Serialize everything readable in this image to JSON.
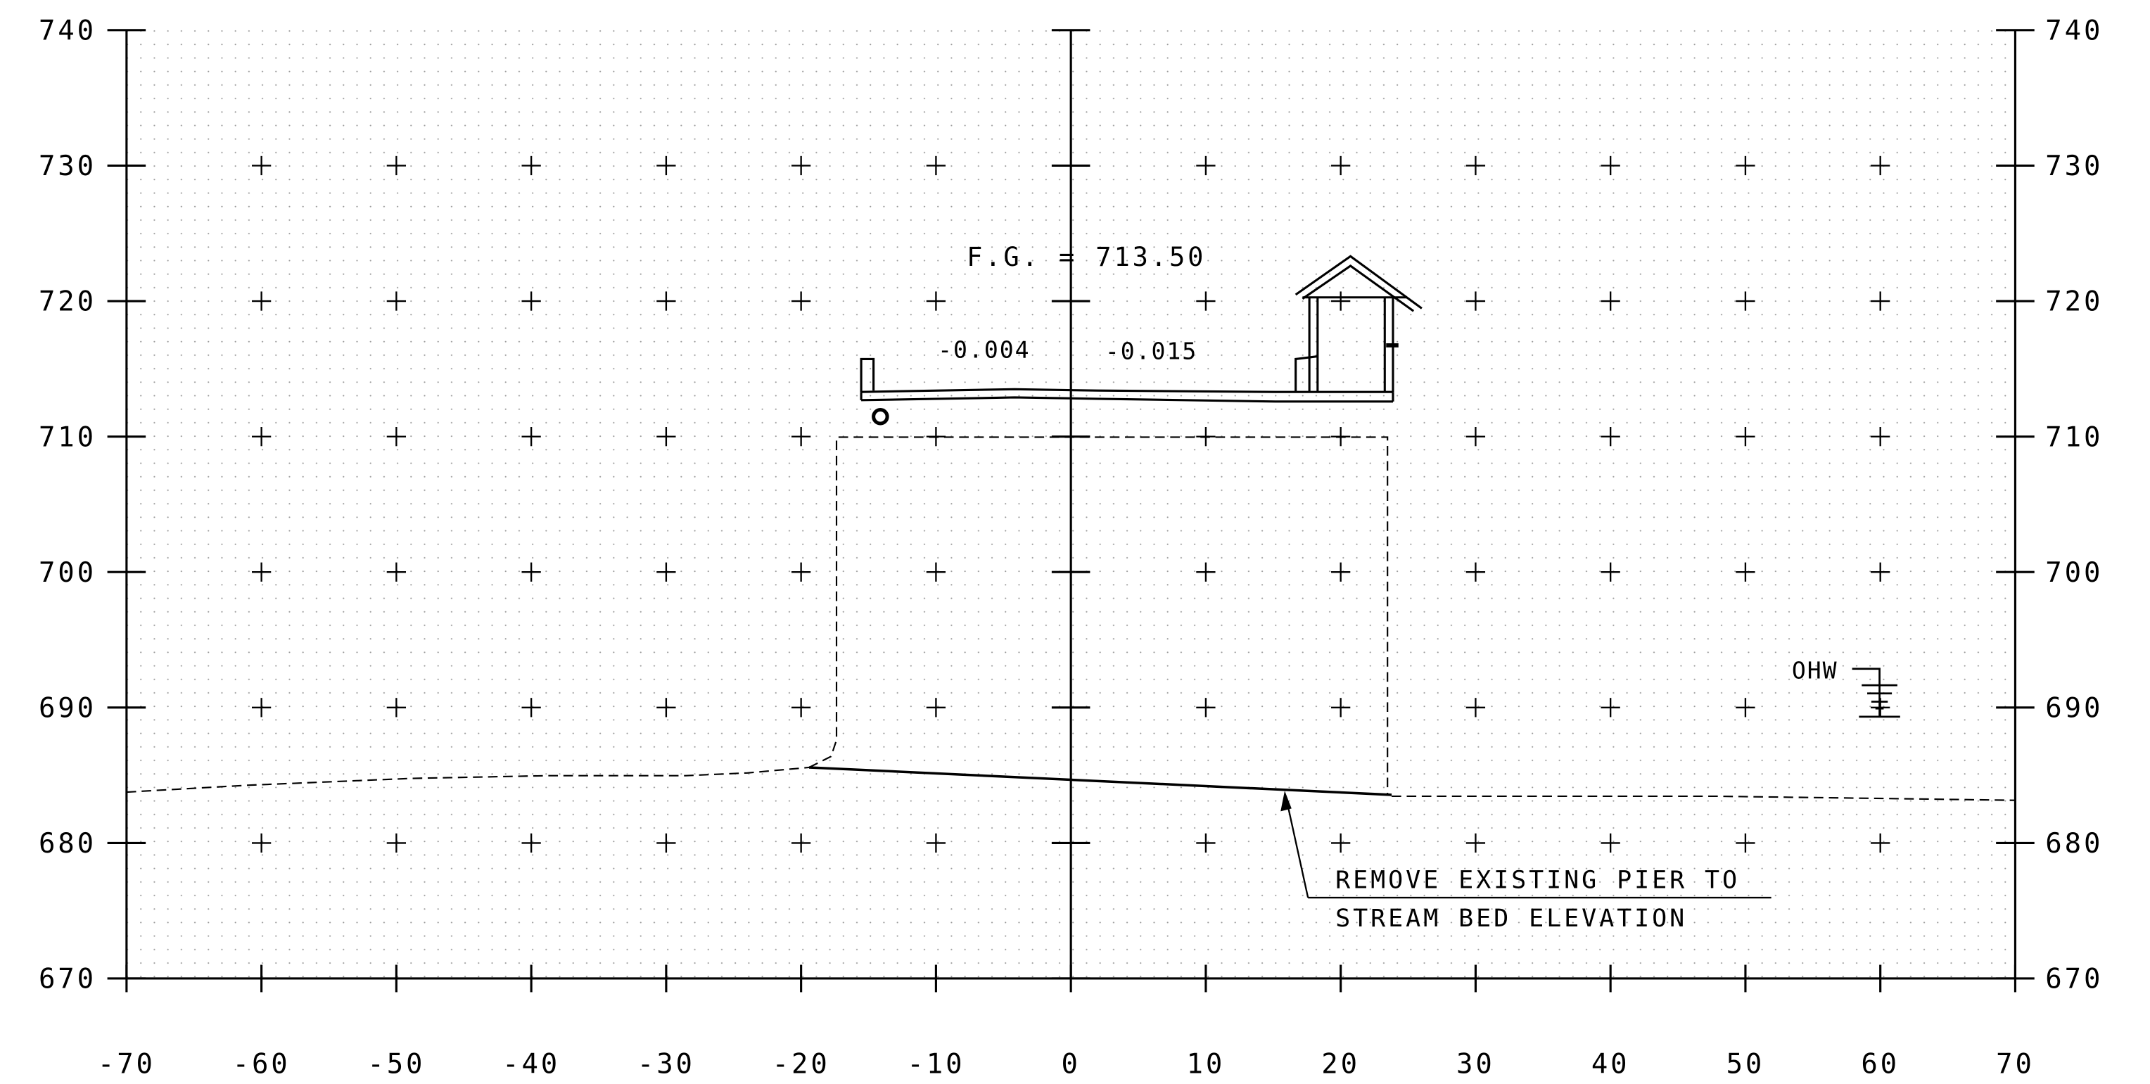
{
  "section": {
    "finished_grade_label": "F.G. = 713.50",
    "finished_grade_elevation": 713.5,
    "cross_slope_left": "-0.004",
    "cross_slope_right": "-0.015",
    "ohw_label": "OHW",
    "note_line_1": "REMOVE EXISTING PIER TO",
    "note_line_2": "STREAM BED ELEVATION"
  },
  "axes": {
    "x_range": [
      -70,
      70
    ],
    "x_step": 10,
    "x_tick_labels": [
      "-70",
      "-60",
      "-50",
      "-40",
      "-30",
      "-20",
      "-10",
      "0",
      "10",
      "20",
      "30",
      "40",
      "50",
      "60",
      "70"
    ],
    "y_range": [
      670,
      740
    ],
    "y_step": 10,
    "y_tick_labels": [
      "740",
      "730",
      "720",
      "710",
      "700",
      "690",
      "680",
      "670"
    ],
    "grid": "dotted",
    "grid_crosses": true
  },
  "colors": {
    "ink": "#000000",
    "background": "#ffffff",
    "grid_dots": "#9a9a9a"
  }
}
